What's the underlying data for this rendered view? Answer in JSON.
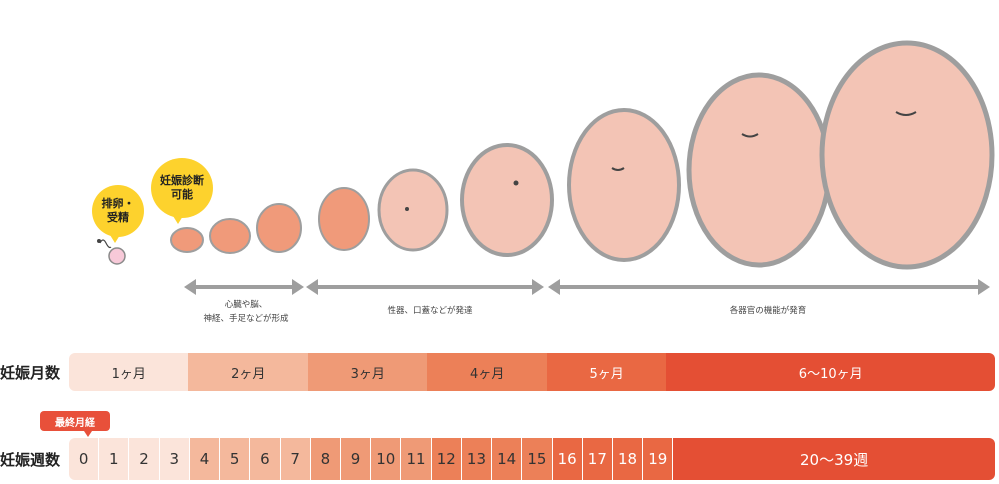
{
  "bubbles": {
    "ovulation": [
      "排卵・",
      "受精"
    ],
    "diagnosis": [
      "妊娠診断",
      "可能"
    ]
  },
  "development": [
    {
      "lines": [
        "心臓や脳、",
        "神経、手足などが形成"
      ]
    },
    {
      "lines": [
        "性器、口蓋などが発達"
      ]
    },
    {
      "lines": [
        "各器官の機能が発育"
      ]
    }
  ],
  "row_labels": {
    "months": "妊娠月数",
    "weeks": "妊娠週数"
  },
  "lmp_label": "最終月経",
  "months": [
    {
      "label": "1ヶ月",
      "weeks_span": 4,
      "color": "#fbe4da",
      "text_color": "#333333"
    },
    {
      "label": "2ヶ月",
      "weeks_span": 4,
      "color": "#f4b89c",
      "text_color": "#333333"
    },
    {
      "label": "3ヶ月",
      "weeks_span": 4,
      "color": "#ef9a76",
      "text_color": "#333333"
    },
    {
      "label": "4ヶ月",
      "weeks_span": 4,
      "color": "#ec8058",
      "text_color": "#333333"
    },
    {
      "label": "5ヶ月",
      "weeks_span": 4,
      "color": "#e96843",
      "text_color": "#ffffff"
    },
    {
      "label": "6〜10ヶ月",
      "weeks_span": 11,
      "color": "#e44f34",
      "text_color": "#ffffff"
    }
  ],
  "weeks": [
    {
      "label": "0",
      "color": "#fbe4da",
      "text_color": "#333333"
    },
    {
      "label": "1",
      "color": "#fbe4da",
      "text_color": "#333333"
    },
    {
      "label": "2",
      "color": "#fbe4da",
      "text_color": "#333333"
    },
    {
      "label": "3",
      "color": "#fbe4da",
      "text_color": "#333333"
    },
    {
      "label": "4",
      "color": "#f4b89c",
      "text_color": "#333333"
    },
    {
      "label": "5",
      "color": "#f4b89c",
      "text_color": "#333333"
    },
    {
      "label": "6",
      "color": "#f4b89c",
      "text_color": "#333333"
    },
    {
      "label": "7",
      "color": "#f4b89c",
      "text_color": "#333333"
    },
    {
      "label": "8",
      "color": "#ef9a76",
      "text_color": "#333333"
    },
    {
      "label": "9",
      "color": "#ef9a76",
      "text_color": "#333333"
    },
    {
      "label": "10",
      "color": "#ef9a76",
      "text_color": "#333333"
    },
    {
      "label": "11",
      "color": "#ef9a76",
      "text_color": "#333333"
    },
    {
      "label": "12",
      "color": "#ec8058",
      "text_color": "#333333"
    },
    {
      "label": "13",
      "color": "#ec8058",
      "text_color": "#333333"
    },
    {
      "label": "14",
      "color": "#ec8058",
      "text_color": "#333333"
    },
    {
      "label": "15",
      "color": "#ec8058",
      "text_color": "#333333"
    },
    {
      "label": "16",
      "color": "#e96843",
      "text_color": "#ffffff"
    },
    {
      "label": "17",
      "color": "#e96843",
      "text_color": "#ffffff"
    },
    {
      "label": "18",
      "color": "#e96843",
      "text_color": "#ffffff"
    },
    {
      "label": "19",
      "color": "#e96843",
      "text_color": "#ffffff"
    },
    {
      "label": "20〜39週",
      "span": 11,
      "color": "#e44f34",
      "text_color": "#ffffff"
    }
  ],
  "colors": {
    "fetus_fill": "#f3c4b5",
    "fetus_outline": "#9e9e9e",
    "arrow": "#9e9e9e",
    "bubble": "#fdd22d"
  }
}
